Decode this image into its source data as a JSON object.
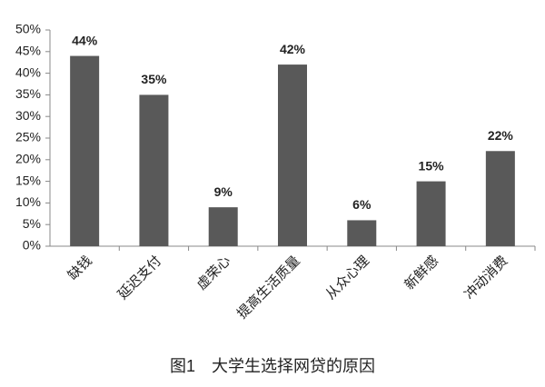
{
  "chart_data": {
    "type": "bar",
    "title": "图1　大学生选择网贷的原因",
    "categories": [
      "缺钱",
      "延迟支付",
      "虚荣心",
      "提高生活质量",
      "从众心理",
      "新鲜感",
      "冲动消费"
    ],
    "values": [
      44,
      35,
      9,
      42,
      6,
      15,
      22
    ],
    "value_labels": [
      "44%",
      "35%",
      "9%",
      "42%",
      "6%",
      "15%",
      "22%"
    ],
    "color": "#595959",
    "ylim": [
      0,
      50
    ],
    "yticks": [
      {
        "value": 0,
        "label": "0%"
      },
      {
        "value": 5,
        "label": "5%"
      },
      {
        "value": 10,
        "label": "10%"
      },
      {
        "value": 15,
        "label": "15%"
      },
      {
        "value": 20,
        "label": "20%"
      },
      {
        "value": 25,
        "label": "25%"
      },
      {
        "value": 30,
        "label": "30%"
      },
      {
        "value": 35,
        "label": "35%"
      },
      {
        "value": 40,
        "label": "40%"
      },
      {
        "value": 45,
        "label": "45%"
      },
      {
        "value": 50,
        "label": "50%"
      }
    ],
    "grid": false
  }
}
